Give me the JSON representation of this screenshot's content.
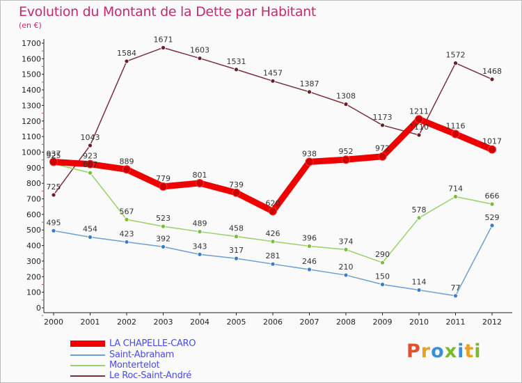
{
  "header": {
    "title": "Evolution du Montant de la Dette par Habitant",
    "subtitle": "(en €)"
  },
  "logo": {
    "text": "Proxiti",
    "colors": [
      "#e0502a",
      "#e8a020",
      "#3b8fd6",
      "#7cb82f",
      "#3b8fd6",
      "#e8a020",
      "#7cb82f"
    ]
  },
  "chart_data": {
    "type": "line",
    "title": "Evolution du Montant de la Dette par Habitant",
    "subtitle": "(en €)",
    "x": [
      "2000",
      "2001",
      "2002",
      "2003",
      "2004",
      "2005",
      "2006",
      "2007",
      "2008",
      "2009",
      "2010",
      "2011",
      "2012"
    ],
    "ylim": [
      0,
      1700
    ],
    "yticks": [
      0,
      100,
      200,
      300,
      400,
      500,
      600,
      700,
      800,
      900,
      1000,
      1100,
      1200,
      1300,
      1400,
      1500,
      1600,
      1700
    ],
    "grid": false,
    "legend_position": "bottom-left",
    "series": [
      {
        "name": "LA CHAPELLE-CARO",
        "color": "#ee0000",
        "marker": "#cc0000",
        "values": [
          937,
          923,
          889,
          779,
          801,
          739,
          620,
          938,
          952,
          972,
          1211,
          1116,
          1017
        ]
      },
      {
        "name": "Saint-Abraham",
        "color": "#6d9fd0",
        "marker": "#3b7cc6",
        "values": [
          495,
          454,
          423,
          392,
          343,
          317,
          281,
          246,
          210,
          150,
          114,
          77,
          529
        ]
      },
      {
        "name": "Montertelot",
        "color": "#9ad06a",
        "marker": "#77bf3a",
        "values": [
          925,
          867,
          567,
          523,
          489,
          458,
          426,
          396,
          374,
          290,
          578,
          714,
          666
        ]
      },
      {
        "name": "Le Roc-Saint-André",
        "color": "#7a2f3a",
        "marker": "#6a1e28",
        "values": [
          725,
          1043,
          1584,
          1671,
          1603,
          1531,
          1457,
          1387,
          1308,
          1173,
          1110,
          1572,
          1468
        ]
      }
    ]
  }
}
